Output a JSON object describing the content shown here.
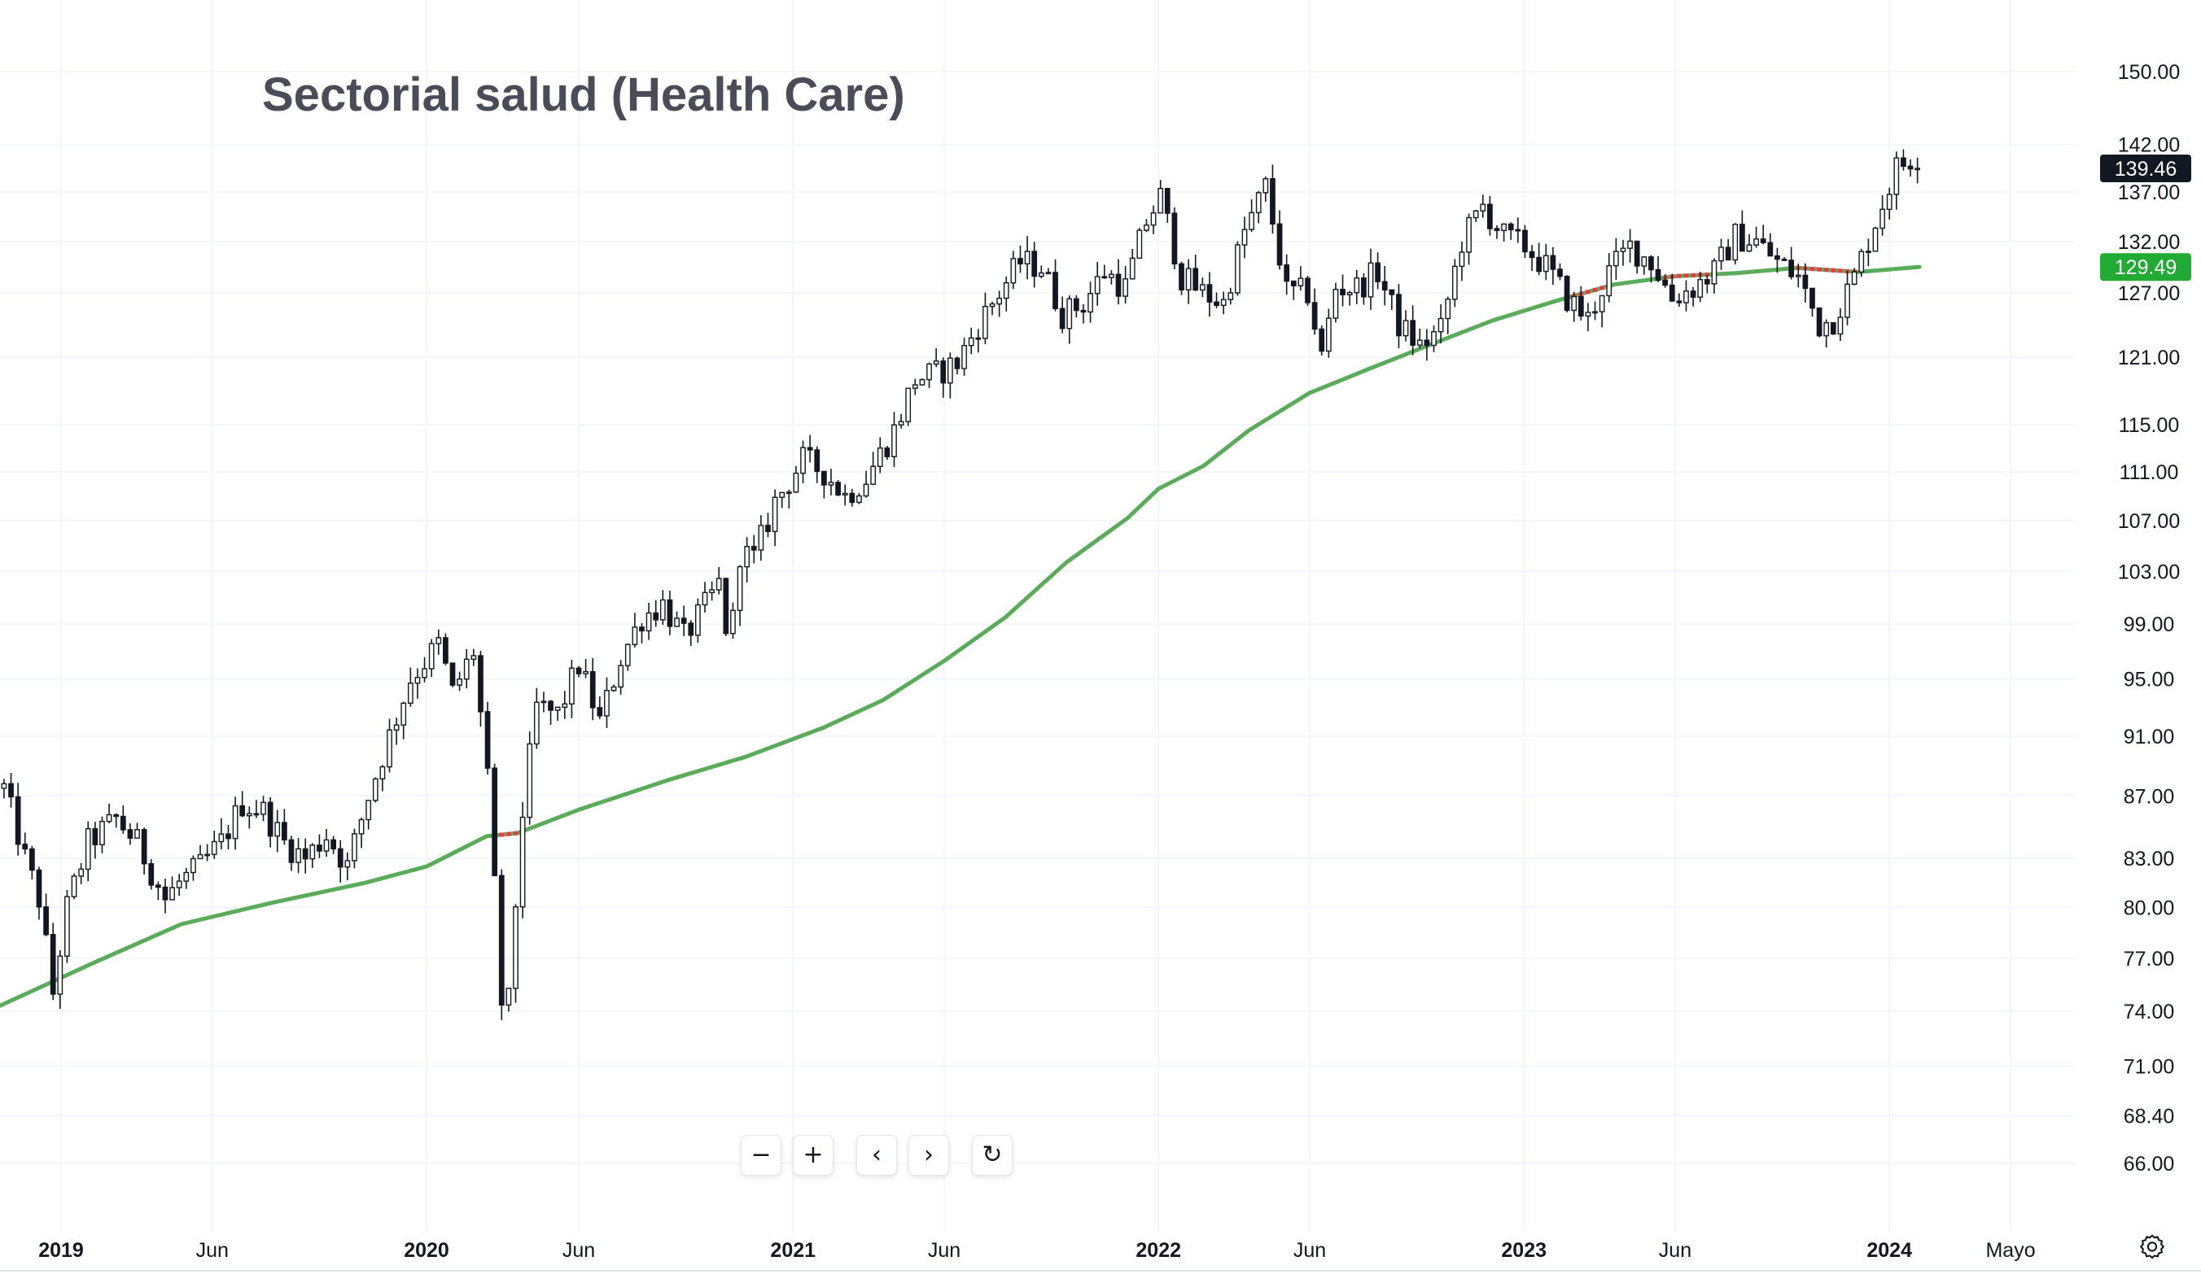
{
  "chart_data": {
    "type": "candlestick",
    "title": "Sectorial salud (Health Care)",
    "y_axis": {
      "scale": "log",
      "range": [
        63.5,
        155.5
      ],
      "ticks": [
        "150.00",
        "142.00",
        "137.00",
        "132.00",
        "127.00",
        "121.00",
        "115.00",
        "111.00",
        "107.00",
        "103.00",
        "99.00",
        "95.00",
        "91.00",
        "87.00",
        "83.00",
        "80.00",
        "77.00",
        "74.00",
        "71.00",
        "68.40",
        "66.00"
      ]
    },
    "x_axis": {
      "range": [
        "2018-11-01",
        "2024-07-05"
      ],
      "ticks": [
        {
          "label": "2019",
          "date": "2019-01-01",
          "year": true
        },
        {
          "label": "Jun",
          "date": "2019-06-01",
          "year": false
        },
        {
          "label": "2020",
          "date": "2020-01-01",
          "year": true
        },
        {
          "label": "Jun",
          "date": "2020-06-01",
          "year": false
        },
        {
          "label": "2021",
          "date": "2021-01-01",
          "year": true
        },
        {
          "label": "Jun",
          "date": "2021-06-01",
          "year": false
        },
        {
          "label": "2022",
          "date": "2022-01-01",
          "year": true
        },
        {
          "label": "Jun",
          "date": "2022-06-01",
          "year": false
        },
        {
          "label": "2023",
          "date": "2023-01-01",
          "year": true
        },
        {
          "label": "Jun",
          "date": "2023-06-01",
          "year": false
        },
        {
          "label": "2024",
          "date": "2024-01-01",
          "year": true
        },
        {
          "label": "Mayo",
          "date": "2024-05-01",
          "year": false
        }
      ]
    },
    "grid": true,
    "price_path": [
      [
        "2018-11-05",
        87.5
      ],
      [
        "2018-11-26",
        83.0
      ],
      [
        "2018-12-10",
        80.5
      ],
      [
        "2018-12-24",
        75.0
      ],
      [
        "2019-01-07",
        80.0
      ],
      [
        "2019-01-28",
        84.0
      ],
      [
        "2019-02-25",
        85.5
      ],
      [
        "2019-03-18",
        84.0
      ],
      [
        "2019-04-15",
        80.5
      ],
      [
        "2019-04-29",
        81.5
      ],
      [
        "2019-05-20",
        82.5
      ],
      [
        "2019-06-10",
        84.0
      ],
      [
        "2019-07-01",
        86.5
      ],
      [
        "2019-07-22",
        86.0
      ],
      [
        "2019-08-12",
        84.0
      ],
      [
        "2019-09-02",
        83.0
      ],
      [
        "2019-09-23",
        84.5
      ],
      [
        "2019-10-14",
        82.5
      ],
      [
        "2019-11-04",
        87.0
      ],
      [
        "2019-11-25",
        91.0
      ],
      [
        "2019-12-16",
        95.0
      ],
      [
        "2020-01-13",
        97.5
      ],
      [
        "2020-01-27",
        94.0
      ],
      [
        "2020-02-17",
        97.0
      ],
      [
        "2020-03-02",
        88.0
      ],
      [
        "2020-03-16",
        74.5
      ],
      [
        "2020-03-23",
        74.5
      ],
      [
        "2020-04-06",
        86.0
      ],
      [
        "2020-04-20",
        93.0
      ],
      [
        "2020-05-11",
        92.5
      ],
      [
        "2020-06-01",
        96.0
      ],
      [
        "2020-06-22",
        92.0
      ],
      [
        "2020-07-13",
        96.5
      ],
      [
        "2020-08-03",
        99.5
      ],
      [
        "2020-08-24",
        100.5
      ],
      [
        "2020-09-14",
        98.0
      ],
      [
        "2020-09-28",
        99.5
      ],
      [
        "2020-10-19",
        102.0
      ],
      [
        "2020-10-30",
        97.0
      ],
      [
        "2020-11-09",
        104.5
      ],
      [
        "2020-11-23",
        104.0
      ],
      [
        "2020-12-14",
        108.5
      ],
      [
        "2021-01-11",
        112.0
      ],
      [
        "2021-02-01",
        111.0
      ],
      [
        "2021-02-22",
        109.0
      ],
      [
        "2021-03-15",
        110.5
      ],
      [
        "2021-04-12",
        114.5
      ],
      [
        "2021-05-03",
        119.0
      ],
      [
        "2021-05-24",
        119.5
      ],
      [
        "2021-06-14",
        120.5
      ],
      [
        "2021-07-05",
        124.0
      ],
      [
        "2021-07-26",
        127.0
      ],
      [
        "2021-08-16",
        130.0
      ],
      [
        "2021-09-06",
        129.5
      ],
      [
        "2021-09-27",
        125.0
      ],
      [
        "2021-10-18",
        126.0
      ],
      [
        "2021-11-08",
        129.0
      ],
      [
        "2021-11-29",
        127.5
      ],
      [
        "2021-12-20",
        134.0
      ],
      [
        "2022-01-03",
        136.5
      ],
      [
        "2022-01-24",
        128.5
      ],
      [
        "2022-02-14",
        127.0
      ],
      [
        "2022-03-07",
        126.0
      ],
      [
        "2022-03-28",
        133.0
      ],
      [
        "2022-04-18",
        137.5
      ],
      [
        "2022-05-09",
        127.0
      ],
      [
        "2022-05-30",
        127.0
      ],
      [
        "2022-06-13",
        121.0
      ],
      [
        "2022-06-27",
        127.5
      ],
      [
        "2022-07-18",
        127.5
      ],
      [
        "2022-08-08",
        129.0
      ],
      [
        "2022-08-29",
        124.0
      ],
      [
        "2022-09-19",
        122.0
      ],
      [
        "2022-10-10",
        123.5
      ],
      [
        "2022-10-31",
        132.0
      ],
      [
        "2022-11-21",
        135.5
      ],
      [
        "2022-12-12",
        132.5
      ],
      [
        "2023-01-02",
        131.5
      ],
      [
        "2023-01-23",
        129.5
      ],
      [
        "2023-02-13",
        126.5
      ],
      [
        "2023-03-06",
        124.5
      ],
      [
        "2023-03-27",
        129.0
      ],
      [
        "2023-04-17",
        131.5
      ],
      [
        "2023-05-08",
        130.0
      ],
      [
        "2023-05-29",
        126.5
      ],
      [
        "2023-06-19",
        127.5
      ],
      [
        "2023-07-10",
        129.0
      ],
      [
        "2023-07-31",
        132.5
      ],
      [
        "2023-08-21",
        132.0
      ],
      [
        "2023-09-11",
        130.0
      ],
      [
        "2023-10-02",
        128.5
      ],
      [
        "2023-10-23",
        124.0
      ],
      [
        "2023-11-06",
        124.5
      ],
      [
        "2023-11-27",
        128.5
      ],
      [
        "2023-12-18",
        134.0
      ],
      [
        "2024-01-08",
        139.5
      ],
      [
        "2024-01-22",
        140.5
      ],
      [
        "2024-01-29",
        139.5
      ]
    ],
    "candle_spacing_days": 7,
    "last_close": 139.46,
    "moving_average": {
      "color": "#5aab5a",
      "below_color": "#f23645",
      "points": [
        [
          "2018-11-01",
          74.3
        ],
        [
          "2019-02-01",
          76.7
        ],
        [
          "2019-05-01",
          79.0
        ],
        [
          "2019-08-01",
          80.3
        ],
        [
          "2019-11-01",
          81.5
        ],
        [
          "2020-01-01",
          82.5
        ],
        [
          "2020-03-01",
          84.4
        ],
        [
          "2020-04-01",
          84.6
        ],
        [
          "2020-06-01",
          86.1
        ],
        [
          "2020-09-01",
          88.1
        ],
        [
          "2020-11-15",
          89.6
        ],
        [
          "2021-02-01",
          91.6
        ],
        [
          "2021-04-01",
          93.5
        ],
        [
          "2021-06-01",
          96.3
        ],
        [
          "2021-08-01",
          99.5
        ],
        [
          "2021-10-01",
          103.7
        ],
        [
          "2021-12-01",
          107.2
        ],
        [
          "2022-01-01",
          109.6
        ],
        [
          "2022-02-15",
          111.5
        ],
        [
          "2022-04-01",
          114.5
        ],
        [
          "2022-06-01",
          117.8
        ],
        [
          "2022-08-01",
          120.0
        ],
        [
          "2022-10-01",
          122.2
        ],
        [
          "2022-12-01",
          124.4
        ],
        [
          "2023-02-01",
          126.2
        ],
        [
          "2023-04-01",
          127.8
        ],
        [
          "2023-06-01",
          128.6
        ],
        [
          "2023-08-01",
          128.9
        ],
        [
          "2023-10-01",
          129.4
        ],
        [
          "2023-12-01",
          129.0
        ],
        [
          "2024-01-31",
          129.5
        ]
      ],
      "last_value": 129.49
    },
    "price_label": {
      "text": "139.46",
      "color": "#131722"
    },
    "ma_label": {
      "text": "129.49",
      "color": "#22ab34"
    }
  },
  "controls": {
    "zoom_out": "−",
    "zoom_in": "+",
    "scroll_left": "‹",
    "scroll_right": "›",
    "reset": "↻"
  },
  "colors": {
    "grid": "#f0f3fa",
    "candle_up_fill": "#ffffff",
    "candle_down_fill": "#131722",
    "candle_stroke": "#131722",
    "axis_text": "#131722"
  },
  "icons": {
    "settings": "gear-icon"
  }
}
